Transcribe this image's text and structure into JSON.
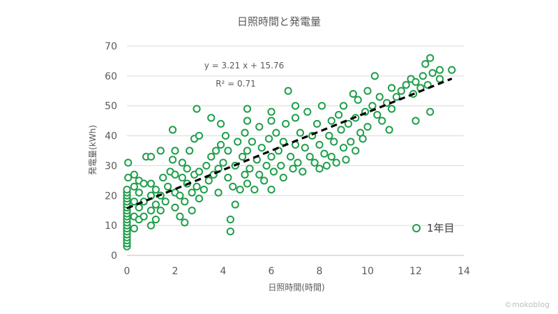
{
  "chart_data": {
    "type": "scatter",
    "title": "日照時間と発電量",
    "xlabel": "日照時間(時間)",
    "ylabel": "発電量(kWh)",
    "xlim": [
      0,
      14
    ],
    "ylim": [
      0,
      70
    ],
    "xticks": [
      0,
      2,
      4,
      6,
      8,
      10,
      12,
      14
    ],
    "yticks": [
      0,
      10,
      20,
      30,
      40,
      50,
      60,
      70
    ],
    "grid": "horizontal",
    "legend_position": "bottom-right",
    "series": [
      {
        "name": "1年目",
        "marker": "open-circle",
        "color": "#1e9e4a",
        "points": [
          [
            0,
            3
          ],
          [
            0,
            4
          ],
          [
            0,
            5
          ],
          [
            0,
            6
          ],
          [
            0,
            7
          ],
          [
            0,
            8
          ],
          [
            0,
            9
          ],
          [
            0,
            10
          ],
          [
            0,
            11
          ],
          [
            0,
            12
          ],
          [
            0,
            13
          ],
          [
            0,
            14
          ],
          [
            0,
            15
          ],
          [
            0,
            16
          ],
          [
            0,
            17
          ],
          [
            0,
            18
          ],
          [
            0,
            19
          ],
          [
            0,
            20
          ],
          [
            0,
            21
          ],
          [
            0,
            22
          ],
          [
            0.05,
            26
          ],
          [
            0.05,
            31
          ],
          [
            0.3,
            9
          ],
          [
            0.3,
            13
          ],
          [
            0.3,
            18
          ],
          [
            0.3,
            23
          ],
          [
            0.3,
            27
          ],
          [
            0.5,
            12
          ],
          [
            0.5,
            16
          ],
          [
            0.5,
            21
          ],
          [
            0.5,
            25
          ],
          [
            0.7,
            13
          ],
          [
            0.7,
            18
          ],
          [
            0.7,
            24
          ],
          [
            0.8,
            33
          ],
          [
            1,
            10
          ],
          [
            1,
            15
          ],
          [
            1,
            20
          ],
          [
            1,
            24
          ],
          [
            1,
            33
          ],
          [
            1.2,
            12
          ],
          [
            1.2,
            17
          ],
          [
            1.2,
            22
          ],
          [
            1.4,
            15
          ],
          [
            1.4,
            20
          ],
          [
            1.4,
            35
          ],
          [
            1.5,
            26
          ],
          [
            1.6,
            18
          ],
          [
            1.7,
            23
          ],
          [
            1.8,
            28
          ],
          [
            1.9,
            32
          ],
          [
            1.9,
            42
          ],
          [
            2,
            16
          ],
          [
            2,
            21
          ],
          [
            2,
            27
          ],
          [
            2,
            35
          ],
          [
            2.2,
            13
          ],
          [
            2.2,
            20
          ],
          [
            2.3,
            26
          ],
          [
            2.3,
            31
          ],
          [
            2.4,
            11
          ],
          [
            2.4,
            18
          ],
          [
            2.5,
            24
          ],
          [
            2.5,
            29
          ],
          [
            2.6,
            35
          ],
          [
            2.7,
            15
          ],
          [
            2.7,
            21
          ],
          [
            2.8,
            27
          ],
          [
            2.8,
            39
          ],
          [
            2.9,
            23
          ],
          [
            2.9,
            49
          ],
          [
            3,
            19
          ],
          [
            3,
            28
          ],
          [
            3,
            40
          ],
          [
            3.2,
            22
          ],
          [
            3.3,
            30
          ],
          [
            3.4,
            25
          ],
          [
            3.5,
            33
          ],
          [
            3.5,
            46
          ],
          [
            3.6,
            27
          ],
          [
            3.7,
            35
          ],
          [
            3.8,
            21
          ],
          [
            3.8,
            29
          ],
          [
            3.9,
            37
          ],
          [
            3.9,
            44
          ],
          [
            4,
            31
          ],
          [
            4.1,
            40
          ],
          [
            4.2,
            26
          ],
          [
            4.2,
            35
          ],
          [
            4.3,
            12
          ],
          [
            4.3,
            8
          ],
          [
            4.4,
            23
          ],
          [
            4.5,
            30
          ],
          [
            4.5,
            17
          ],
          [
            4.6,
            38
          ],
          [
            4.7,
            22
          ],
          [
            4.8,
            33
          ],
          [
            4.9,
            27
          ],
          [
            4.9,
            41
          ],
          [
            5,
            24
          ],
          [
            5,
            35
          ],
          [
            5,
            45
          ],
          [
            5,
            49
          ],
          [
            5.1,
            29
          ],
          [
            5.2,
            38
          ],
          [
            5.3,
            22
          ],
          [
            5.4,
            32
          ],
          [
            5.5,
            43
          ],
          [
            5.5,
            27
          ],
          [
            5.6,
            36
          ],
          [
            5.7,
            25
          ],
          [
            5.8,
            30
          ],
          [
            5.9,
            39
          ],
          [
            6,
            22
          ],
          [
            6,
            33
          ],
          [
            6,
            45
          ],
          [
            6,
            48
          ],
          [
            6.1,
            28
          ],
          [
            6.2,
            41
          ],
          [
            6.3,
            35
          ],
          [
            6.4,
            30
          ],
          [
            6.5,
            26
          ],
          [
            6.5,
            38
          ],
          [
            6.6,
            44
          ],
          [
            6.7,
            55
          ],
          [
            6.8,
            33
          ],
          [
            6.9,
            29
          ],
          [
            7,
            37
          ],
          [
            7,
            46
          ],
          [
            7,
            50
          ],
          [
            7.1,
            31
          ],
          [
            7.2,
            41
          ],
          [
            7.3,
            28
          ],
          [
            7.4,
            36
          ],
          [
            7.5,
            48
          ],
          [
            7.6,
            33
          ],
          [
            7.7,
            40
          ],
          [
            7.8,
            31
          ],
          [
            7.9,
            44
          ],
          [
            8,
            37
          ],
          [
            8,
            29
          ],
          [
            8.1,
            50
          ],
          [
            8.2,
            34
          ],
          [
            8.3,
            30
          ],
          [
            8.4,
            40
          ],
          [
            8.5,
            45
          ],
          [
            8.5,
            33
          ],
          [
            8.6,
            38
          ],
          [
            8.7,
            31
          ],
          [
            8.8,
            47
          ],
          [
            8.9,
            42
          ],
          [
            9,
            36
          ],
          [
            9,
            50
          ],
          [
            9.1,
            32
          ],
          [
            9.2,
            44
          ],
          [
            9.3,
            38
          ],
          [
            9.4,
            54
          ],
          [
            9.5,
            46
          ],
          [
            9.5,
            35
          ],
          [
            9.6,
            52
          ],
          [
            9.7,
            41
          ],
          [
            9.8,
            39
          ],
          [
            9.9,
            48
          ],
          [
            10,
            55
          ],
          [
            10,
            43
          ],
          [
            10.2,
            50
          ],
          [
            10.3,
            60
          ],
          [
            10.4,
            47
          ],
          [
            10.5,
            53
          ],
          [
            10.6,
            45
          ],
          [
            10.8,
            51
          ],
          [
            10.9,
            42
          ],
          [
            11,
            56
          ],
          [
            11,
            49
          ],
          [
            11.2,
            53
          ],
          [
            11.4,
            55
          ],
          [
            11.6,
            57
          ],
          [
            11.8,
            59
          ],
          [
            11.9,
            54
          ],
          [
            12,
            45
          ],
          [
            12,
            58
          ],
          [
            12.2,
            56
          ],
          [
            12.3,
            60
          ],
          [
            12.4,
            64
          ],
          [
            12.5,
            57
          ],
          [
            12.6,
            66
          ],
          [
            12.6,
            48
          ],
          [
            12.7,
            61
          ],
          [
            13,
            62
          ],
          [
            13,
            59
          ],
          [
            13.5,
            62
          ]
        ]
      }
    ],
    "trendline": {
      "type": "linear",
      "slope": 3.21,
      "intercept": 15.76,
      "equation_label": "y = 3.21 x + 15.76",
      "r2_label": "R² = 0.71",
      "style": "dashed"
    }
  },
  "credit": "©mokoblog"
}
